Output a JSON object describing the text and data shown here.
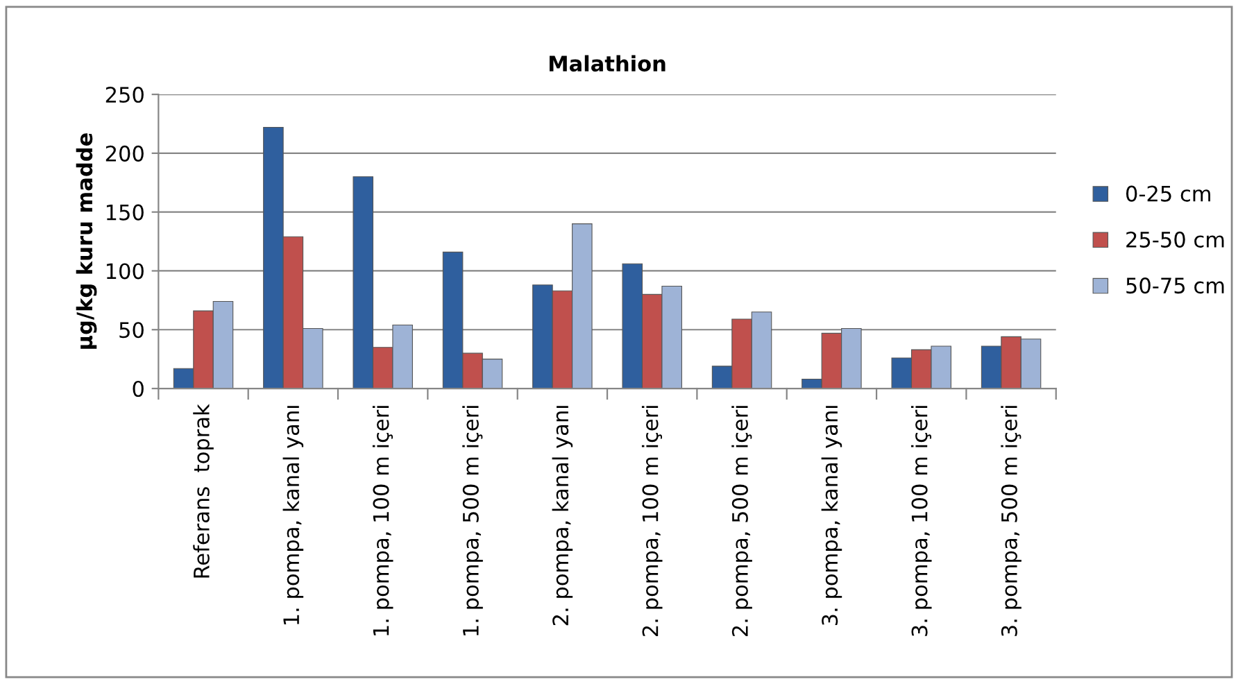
{
  "chart_data": {
    "type": "bar",
    "title": "Malathion",
    "ylabel": "µg/kg kuru madde",
    "categories": [
      "Referans  toprak",
      "1. pompa, kanal yanı",
      "1. pompa, 100 m içeri",
      "1. pompa, 500 m içeri",
      "2. pompa, kanal yanı",
      "2. pompa, 100 m içeri",
      "2. pompa, 500 m içeri",
      "3. pompa, kanal yanı",
      "3. pompa, 100 m içeri",
      "3. pompa, 500 m içeri"
    ],
    "series": [
      {
        "name": "0-25 cm",
        "color": "#2f5f9e",
        "values": [
          17,
          222,
          180,
          116,
          88,
          106,
          19,
          8,
          26,
          36
        ]
      },
      {
        "name": "25-50 cm",
        "color": "#c0504d",
        "values": [
          66,
          129,
          35,
          30,
          83,
          80,
          59,
          47,
          33,
          44
        ]
      },
      {
        "name": "50-75 cm",
        "color": "#9eb3d6",
        "values": [
          74,
          51,
          54,
          25,
          140,
          87,
          65,
          51,
          36,
          42
        ]
      }
    ],
    "ylim": [
      0,
      250
    ],
    "yticks": [
      0,
      50,
      100,
      150,
      200,
      250
    ],
    "grid": "y",
    "legend": "right"
  }
}
